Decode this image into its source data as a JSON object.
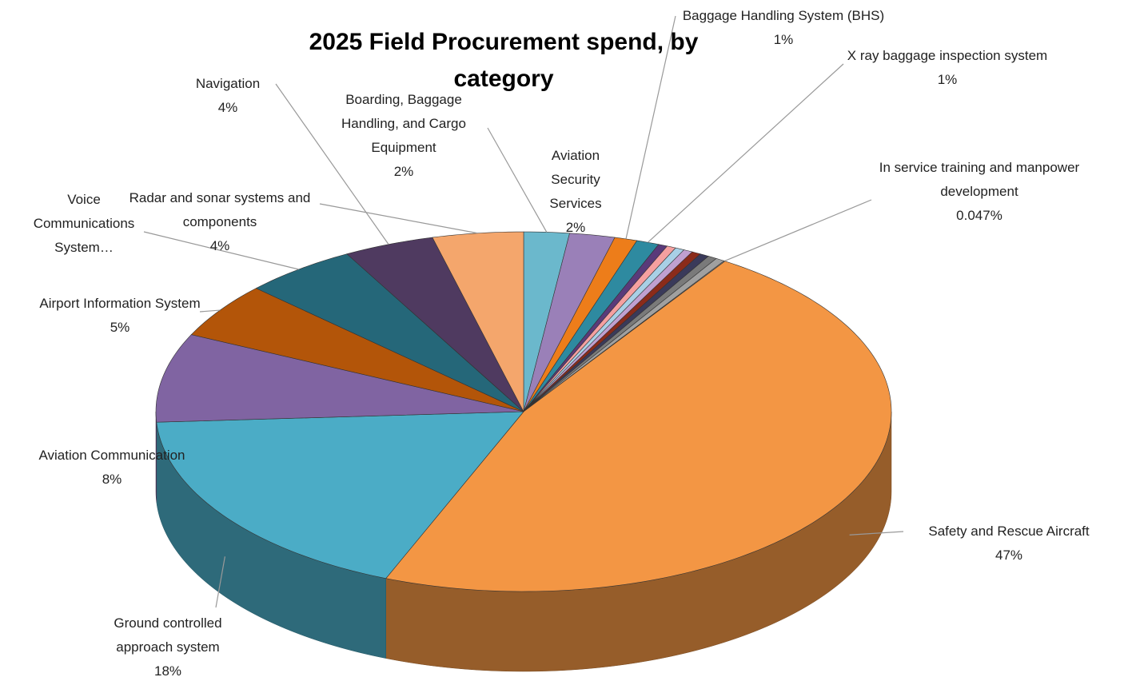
{
  "chart_data": {
    "type": "pie",
    "title": "2025 Field Procurement spend, by category",
    "categories": [
      "Boarding, Baggage Handling, and Cargo Equipment",
      "Aviation Security Services",
      "Baggage Handling System (BHS)",
      "X ray baggage inspection system",
      null,
      null,
      null,
      null,
      null,
      null,
      null,
      null,
      "In service training and manpower development",
      "Safety and Rescue Aircraft",
      "Ground controlled approach system",
      "Aviation Communication",
      "Airport Information System",
      "Voice Communications System…",
      "Navigation",
      "Radar and sonar systems and components"
    ],
    "values": [
      2,
      2,
      1,
      1,
      0.4,
      0.4,
      0.4,
      0.4,
      0.4,
      0.4,
      0.4,
      0.4,
      0.047,
      47,
      18,
      8,
      5,
      5,
      4,
      4
    ],
    "value_labels": [
      "2%",
      "2%",
      "1%",
      "1%",
      null,
      null,
      null,
      null,
      null,
      null,
      null,
      null,
      "0.047%",
      "47%",
      "18%",
      "8%",
      "5%",
      null,
      "4%",
      "4%"
    ],
    "colors": [
      "#6bb8cc",
      "#9a80b8",
      "#ed7d1a",
      "#2e8aa0",
      "#5a3a7a",
      "#f5a0a0",
      "#a8d0e6",
      "#c0a0d0",
      "#8b2b1a",
      "#3a3a5a",
      "#7a7a7a",
      "#a0a0a0",
      "#b8b8b8",
      "#f39644",
      "#4bacc6",
      "#8064a2",
      "#b35509",
      "#256779",
      "#4f3a60",
      "#f4a66c"
    ]
  }
}
